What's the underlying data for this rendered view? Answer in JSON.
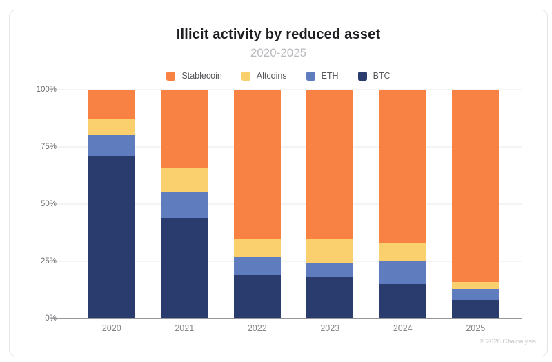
{
  "header": {
    "title": "Illicit activity by reduced asset",
    "subtitle": "2020-2025"
  },
  "footer": {
    "copyright": "© 2026 Chainalysis"
  },
  "chart_data": {
    "type": "bar",
    "stacked": true,
    "title": "Illicit activity by reduced asset",
    "subtitle": "2020-2025",
    "categories": [
      "2020",
      "2021",
      "2022",
      "2023",
      "2024",
      "2025"
    ],
    "series": [
      {
        "name": "Stablecoin",
        "color": "#F88144",
        "values": [
          13,
          34,
          65,
          65,
          67,
          84
        ]
      },
      {
        "name": "Altcoins",
        "color": "#FAD06E",
        "values": [
          7,
          11,
          8,
          11,
          8,
          3
        ]
      },
      {
        "name": "ETH",
        "color": "#5F7CBF",
        "values": [
          9,
          11,
          8,
          6,
          10,
          5
        ]
      },
      {
        "name": "BTC",
        "color": "#2A3B6E",
        "values": [
          71,
          44,
          19,
          18,
          15,
          8
        ]
      }
    ],
    "xlabel": "",
    "ylabel": "",
    "ylim": [
      0,
      100
    ],
    "yticks": [
      "0%",
      "25%",
      "50%",
      "75%",
      "100%"
    ],
    "yunit": "percent",
    "grid": true,
    "legend_position": "top"
  }
}
